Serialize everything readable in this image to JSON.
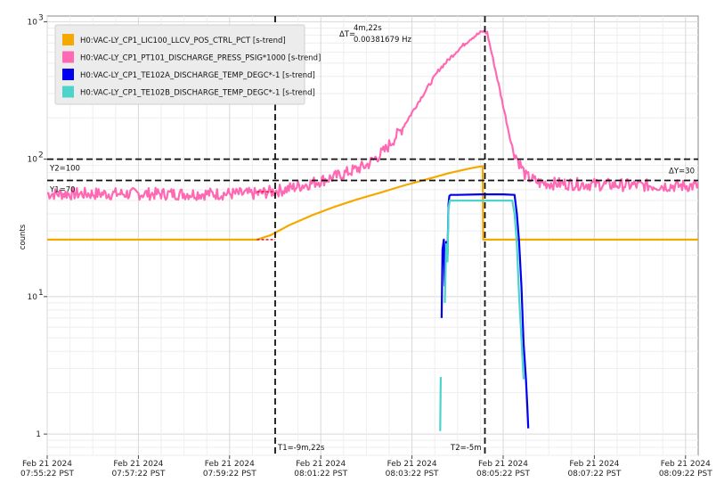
{
  "chart_data": {
    "type": "line",
    "ylabel": "counts",
    "yscale": "log",
    "ylim": [
      0.7,
      1100
    ],
    "y_ticks": [
      {
        "value": 1000,
        "base": "10",
        "exp": "3"
      },
      {
        "value": 100,
        "base": "10",
        "exp": "2"
      },
      {
        "value": 10,
        "base": "10",
        "exp": "1"
      },
      {
        "value": 1,
        "base": "1",
        "exp": ""
      }
    ],
    "x_unit": "minutes after Feb 21 2024 07:55:22 PST",
    "xlim": [
      0,
      14.3
    ],
    "x_ticks": [
      {
        "value": 0,
        "line1": "Feb 21 2024",
        "line2": "07:55:22 PST"
      },
      {
        "value": 2,
        "line1": "Feb 21 2024",
        "line2": "07:57:22 PST"
      },
      {
        "value": 4,
        "line1": "Feb 21 2024",
        "line2": "07:59:22 PST"
      },
      {
        "value": 6,
        "line1": "Feb 21 2024",
        "line2": "08:01:22 PST"
      },
      {
        "value": 8,
        "line1": "Feb 21 2024",
        "line2": "08:03:22 PST"
      },
      {
        "value": 10,
        "line1": "Feb 21 2024",
        "line2": "08:05:22 PST"
      },
      {
        "value": 12,
        "line1": "Feb 21 2024",
        "line2": "08:07:22 PST"
      },
      {
        "value": 14,
        "line1": "Feb 21 2024",
        "line2": "08:09:22 PST"
      }
    ],
    "grid": true,
    "legend_position": "top-left",
    "series": [
      {
        "name": "H0:VAC-LY_CP1_LIC100_LLCV_POS_CTRL_PCT [s-trend]",
        "color": "#f5a800",
        "points": [
          [
            0,
            26
          ],
          [
            4.6,
            26
          ],
          [
            4.9,
            28
          ],
          [
            5.3,
            33
          ],
          [
            5.8,
            39
          ],
          [
            6.3,
            45
          ],
          [
            6.8,
            51
          ],
          [
            7.3,
            57
          ],
          [
            7.8,
            64
          ],
          [
            8.3,
            71
          ],
          [
            8.8,
            79
          ],
          [
            9.3,
            86
          ],
          [
            9.55,
            89
          ],
          [
            9.56,
            26
          ],
          [
            14.3,
            26
          ]
        ]
      },
      {
        "name": "H0:VAC-LY_CP1_PT101_DISCHARGE_PRESS_PSIG*1000 [s-trend]",
        "color": "#ff69b4",
        "noise": 0.045,
        "points": [
          [
            0,
            56
          ],
          [
            4.6,
            56
          ],
          [
            5.2,
            60
          ],
          [
            5.8,
            67
          ],
          [
            6.4,
            76
          ],
          [
            7.0,
            90
          ],
          [
            7.4,
            115
          ],
          [
            7.8,
            170
          ],
          [
            8.2,
            280
          ],
          [
            8.6,
            450
          ],
          [
            9.0,
            620
          ],
          [
            9.3,
            760
          ],
          [
            9.55,
            850
          ],
          [
            9.65,
            830
          ],
          [
            9.9,
            350
          ],
          [
            10.2,
            120
          ],
          [
            10.5,
            75
          ],
          [
            10.8,
            67
          ],
          [
            11.5,
            66
          ],
          [
            12.5,
            65
          ],
          [
            13.5,
            64
          ],
          [
            14.3,
            64
          ]
        ]
      },
      {
        "name": "H0:VAC-LY_CP1_TE102A_DISCHARGE_TEMP_DEGC*-1 [s-trend]",
        "color": "#0000ee",
        "segments": [
          [
            [
              8.65,
              7
            ],
            [
              8.67,
              22
            ],
            [
              8.7,
              26
            ],
            [
              8.72,
              12
            ],
            [
              8.75,
              25
            ],
            [
              8.78,
              20
            ],
            [
              8.8,
              47
            ],
            [
              8.82,
              54
            ],
            [
              8.85,
              55
            ],
            [
              9.0,
              55
            ],
            [
              9.5,
              55.5
            ],
            [
              10.0,
              55.5
            ],
            [
              10.25,
              55
            ],
            [
              10.3,
              40
            ],
            [
              10.35,
              25
            ],
            [
              10.4,
              12
            ],
            [
              10.45,
              4.5
            ],
            [
              10.5,
              2.5
            ],
            [
              10.53,
              1.6
            ],
            [
              10.55,
              1.1
            ]
          ]
        ]
      },
      {
        "name": "H0:VAC-LY_CP1_TE102B_DISCHARGE_TEMP_DEGC*-1 [s-trend]",
        "color": "#4cd3cc",
        "segments": [
          [
            [
              8.72,
              9
            ],
            [
              8.75,
              24
            ],
            [
              8.78,
              18
            ],
            [
              8.8,
              44
            ],
            [
              8.83,
              50
            ],
            [
              9.0,
              50
            ],
            [
              9.5,
              50
            ],
            [
              10.0,
              50
            ],
            [
              10.2,
              50
            ],
            [
              10.25,
              40
            ],
            [
              10.3,
              24
            ],
            [
              10.35,
              10
            ],
            [
              10.4,
              5
            ],
            [
              10.43,
              3.2
            ],
            [
              10.45,
              2.5
            ]
          ],
          [
            [
              8.62,
              1.05
            ],
            [
              8.63,
              2.6
            ]
          ]
        ]
      }
    ],
    "cursors": {
      "t1": {
        "x": 5.0,
        "label": "T1=-9m,22s"
      },
      "t2": {
        "x": 9.6,
        "label": "T2=-5m"
      },
      "y1": {
        "y": 70,
        "label": "Y1=70"
      },
      "y2": {
        "y": 100,
        "label": "Y2=100"
      },
      "delta_t": {
        "label": "ΔT=",
        "value": "4m,22s",
        "freq": "0.00381679 Hz"
      },
      "delta_y": {
        "label": "ΔY=30"
      }
    }
  }
}
